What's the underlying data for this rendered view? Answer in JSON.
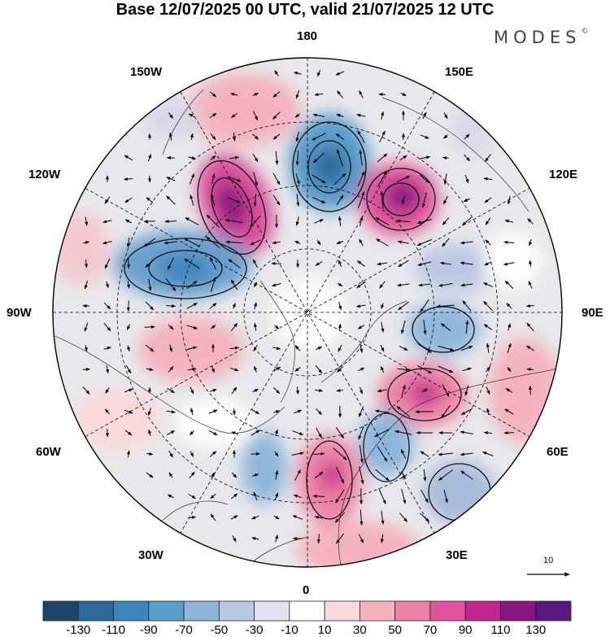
{
  "title": "Base 12/07/2025 00 UTC, valid 21/07/2025 12 UTC",
  "brand": {
    "name": "MODES",
    "mark": "©"
  },
  "longitude_labels": {
    "top": "180",
    "bottom": "0",
    "left": "90W",
    "right": "90E",
    "top_left": "150W",
    "top_right": "150E",
    "upper_left": "120W",
    "upper_right": "120E",
    "lower_left": "60W",
    "lower_right": "60E",
    "bottom_left": "30W",
    "bottom_right": "30E"
  },
  "reference_vector": {
    "label": "10"
  },
  "colorbar": {
    "colors": [
      "#1e4569",
      "#2a6a9a",
      "#3a85bb",
      "#5a9ccc",
      "#8fb6da",
      "#bbc8e2",
      "#e1e1ef",
      "#ffffff",
      "#f9d9dc",
      "#f4b2bd",
      "#ee82a6",
      "#e0549b",
      "#c2258e",
      "#8c1680",
      "#581a7e"
    ],
    "ticks": [
      "-130",
      "-110",
      "-90",
      "-70",
      "-50",
      "-30",
      "-10",
      "10",
      "30",
      "50",
      "70",
      "90",
      "110",
      "130"
    ]
  }
}
